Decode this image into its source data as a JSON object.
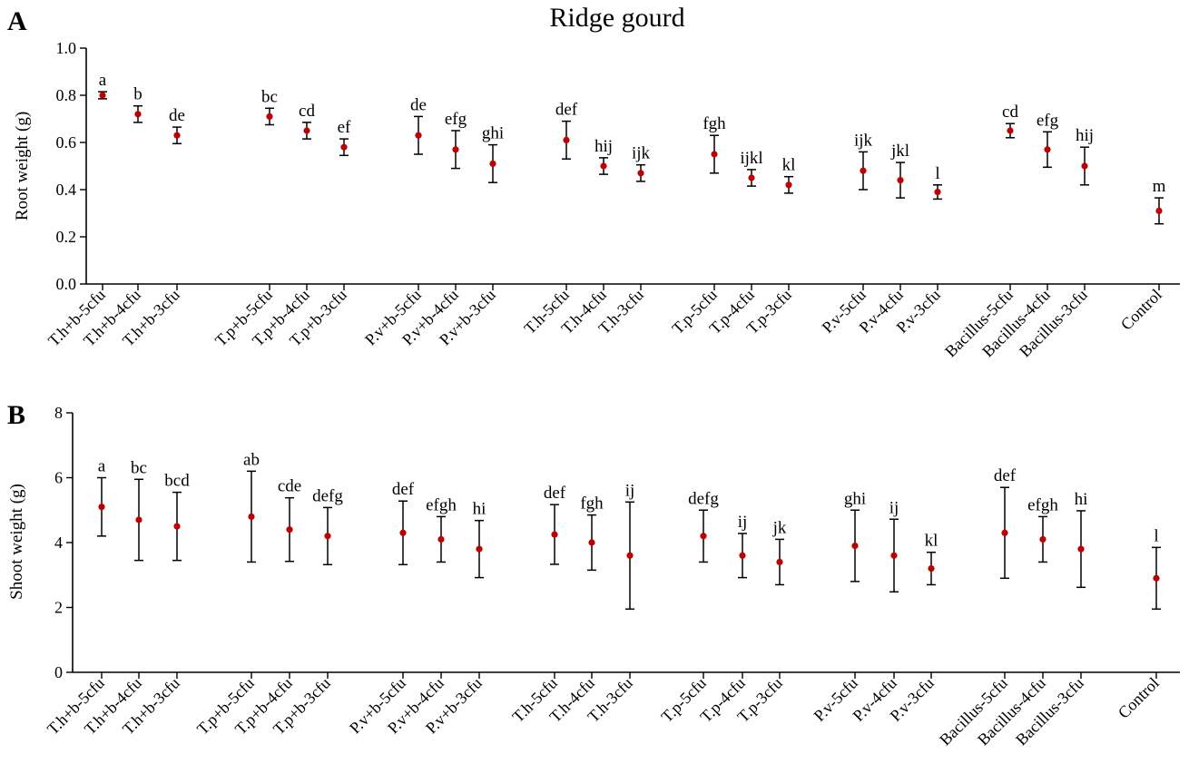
{
  "figure": {
    "title": "Ridge gourd",
    "colors": {
      "point": "#c00000",
      "axis": "#000000",
      "errorbar": "#000000"
    }
  },
  "chart_data": [
    {
      "panel": "A",
      "type": "scatter",
      "error_bars": true,
      "title": "Ridge gourd",
      "xlabel": "",
      "ylabel": "Root weight (g)",
      "ylim": [
        0,
        1.0
      ],
      "yticks": [
        "0.0",
        "0.2",
        "0.4",
        "0.6",
        "0.8",
        "1.0"
      ],
      "grid": false,
      "categories": [
        "T.h+b-5cfu",
        "T.h+b-4cfu",
        "T.h+b-3cfu",
        "T.p+b-5cfu",
        "T.p+b-4cfu",
        "T.p+b-3cfu",
        "P.v+b-5cfu",
        "P.v+b-4cfu",
        "P.v+b-3cfu",
        "T.h-5cfu",
        "T.h-4cfu",
        "T.h-3cfu",
        "T.p-5cfu",
        "T.p-4cfu",
        "T.p-3cfu",
        "P.v-5cfu",
        "P.v-4cfu",
        "P.v-3cfu",
        "Bacillus-5cfu",
        "Bacillus-4cfu",
        "Bacillus-3cfu",
        "Control"
      ],
      "groups": [
        3,
        3,
        3,
        3,
        3,
        3,
        3,
        1
      ],
      "values": [
        0.8,
        0.72,
        0.63,
        0.71,
        0.65,
        0.58,
        0.63,
        0.57,
        0.51,
        0.61,
        0.5,
        0.47,
        0.55,
        0.45,
        0.42,
        0.48,
        0.44,
        0.39,
        0.65,
        0.57,
        0.5,
        0.31
      ],
      "errors": [
        0.015,
        0.035,
        0.035,
        0.035,
        0.035,
        0.035,
        0.08,
        0.08,
        0.08,
        0.08,
        0.035,
        0.035,
        0.08,
        0.035,
        0.035,
        0.08,
        0.075,
        0.03,
        0.03,
        0.075,
        0.08,
        0.055
      ],
      "annotations": [
        "a",
        "b",
        "de",
        "bc",
        "cd",
        "ef",
        "de",
        "efg",
        "ghi",
        "def",
        "hij",
        "ijk",
        "fgh",
        "ijkl",
        "kl",
        "ijk",
        "jkl",
        "l",
        "cd",
        "efg",
        "hij",
        "m"
      ]
    },
    {
      "panel": "B",
      "type": "scatter",
      "error_bars": true,
      "xlabel": "",
      "ylabel": "Shoot weight (g)",
      "ylim": [
        0,
        8
      ],
      "yticks": [
        "0",
        "2",
        "4",
        "6",
        "8"
      ],
      "grid": false,
      "categories": [
        "T.h+b-5cfu",
        "T.h+b-4cfu",
        "T.h+b-3cfu",
        "T.p+b-5cfu",
        "T.p+b-4cfu",
        "T.p+b-3cfu",
        "P.v+b-5cfu",
        "P.v+b-4cfu",
        "P.v+b-3cfu",
        "T.h-5cfu",
        "T.h-4cfu",
        "T.h-3cfu",
        "T.p-5cfu",
        "T.p-4cfu",
        "T.p-3cfu",
        "P.v-5cfu",
        "P.v-4cfu",
        "P.v-3cfu",
        "Bacillus-5cfu",
        "Bacillus-4cfu",
        "Bacillus-3cfu",
        "Control"
      ],
      "groups": [
        3,
        3,
        3,
        3,
        3,
        3,
        3,
        1
      ],
      "values": [
        5.1,
        4.7,
        4.5,
        4.8,
        4.4,
        4.2,
        4.3,
        4.1,
        3.8,
        4.25,
        4.0,
        3.6,
        4.2,
        3.6,
        3.4,
        3.9,
        3.6,
        3.2,
        4.3,
        4.1,
        3.8,
        2.9
      ],
      "errors": [
        0.9,
        1.25,
        1.05,
        1.4,
        0.98,
        0.88,
        0.98,
        0.7,
        0.88,
        0.92,
        0.85,
        1.65,
        0.8,
        0.68,
        0.7,
        1.1,
        1.12,
        0.5,
        1.4,
        0.7,
        1.18,
        0.95
      ],
      "annotations": [
        "a",
        "bc",
        "bcd",
        "ab",
        "cde",
        "defg",
        "def",
        "efgh",
        "hi",
        "def",
        "fgh",
        "ij",
        "defg",
        "ij",
        "jk",
        "ghi",
        "ij",
        "kl",
        "def",
        "efgh",
        "hi",
        "l"
      ]
    }
  ]
}
